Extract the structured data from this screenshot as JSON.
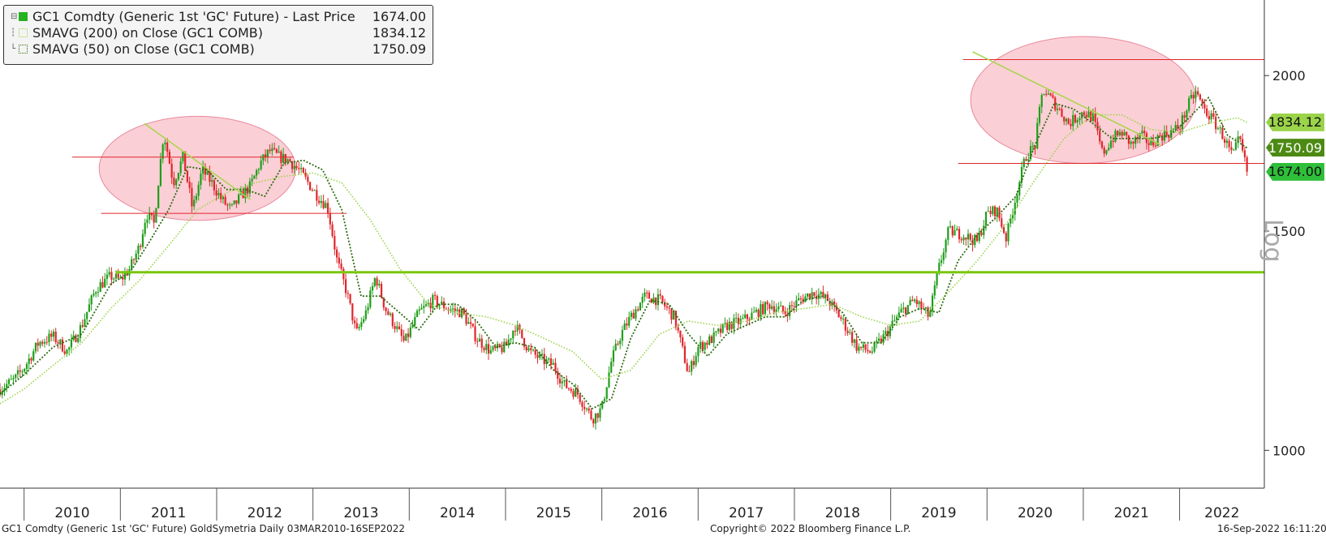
{
  "legend": {
    "price_label": "GC1 Comdty (Generic 1st 'GC' Future) - Last Price",
    "price_value": "1674.00",
    "ma200_label": "SMAVG (200)  on Close (GC1 COMB)",
    "ma200_value": "1834.12",
    "ma50_label": "SMAVG (50)  on Close (GC1 COMB)",
    "ma50_value": "1750.09"
  },
  "axis_label": "Log",
  "footer": {
    "left": "GC1 Comdty (Generic 1st 'GC' Future) GoldSymetria  Daily 03MAR2010-16SEP2022",
    "center": "Copyright© 2022 Bloomberg Finance L.P.",
    "right": "16-Sep-2022 16:11:20"
  },
  "colors": {
    "up_candle": "#1f9e1a",
    "down_candle": "#e0262b",
    "ma200": "#9bd44a",
    "ma50": "#2e6b10",
    "support": "#7ac70c",
    "resistance": "#e0262b",
    "ellipse": "#f7a8b5"
  },
  "chart_data": {
    "type": "line",
    "title": "",
    "xlabel": "",
    "ylabel": "",
    "y_scale": "log",
    "ylim": [
      1000,
      2300
    ],
    "xlim": [
      2009.75,
      2022.88
    ],
    "yticks": [
      1000,
      1500,
      2000
    ],
    "ytick_labels": [
      "1000",
      "1500",
      "2000"
    ],
    "year_labels": [
      "2010",
      "2011",
      "2012",
      "2013",
      "2014",
      "2015",
      "2016",
      "2017",
      "2018",
      "2019",
      "2020",
      "2021",
      "2022"
    ],
    "series": [
      {
        "name": "GC1 Comdty (Generic 1st 'GC' Future) - Last Price",
        "x": [
          2009.75,
          2009.9,
          2010.0,
          2010.15,
          2010.3,
          2010.45,
          2010.6,
          2010.75,
          2010.9,
          2011.0,
          2011.1,
          2011.2,
          2011.27,
          2011.35,
          2011.45,
          2011.55,
          2011.65,
          2011.75,
          2011.85,
          2011.95,
          2012.05,
          2012.15,
          2012.25,
          2012.35,
          2012.45,
          2012.55,
          2012.65,
          2012.75,
          2012.85,
          2012.95,
          2013.05,
          2013.15,
          2013.25,
          2013.35,
          2013.45,
          2013.55,
          2013.65,
          2013.75,
          2013.85,
          2013.95,
          2014.1,
          2014.25,
          2014.4,
          2014.55,
          2014.7,
          2014.85,
          2015.0,
          2015.1,
          2015.25,
          2015.4,
          2015.5,
          2015.6,
          2015.75,
          2015.9,
          2016.0,
          2016.1,
          2016.2,
          2016.3,
          2016.45,
          2016.6,
          2016.75,
          2016.9,
          2017.0,
          2017.15,
          2017.3,
          2017.45,
          2017.6,
          2017.75,
          2017.9,
          2018.05,
          2018.2,
          2018.35,
          2018.5,
          2018.65,
          2018.8,
          2018.95,
          2019.1,
          2019.25,
          2019.4,
          2019.5,
          2019.6,
          2019.75,
          2019.9,
          2020.0,
          2020.1,
          2020.2,
          2020.3,
          2020.4,
          2020.5,
          2020.58,
          2020.7,
          2020.85,
          2021.0,
          2021.1,
          2021.2,
          2021.3,
          2021.4,
          2021.5,
          2021.6,
          2021.7,
          2021.8,
          2021.9,
          2022.0,
          2022.1,
          2022.17,
          2022.25,
          2022.35,
          2022.45,
          2022.55,
          2022.62,
          2022.7
        ],
        "y": [
          1120,
          1140,
          1165,
          1220,
          1235,
          1200,
          1260,
          1350,
          1380,
          1370,
          1400,
          1460,
          1550,
          1520,
          1800,
          1640,
          1720,
          1560,
          1680,
          1640,
          1590,
          1560,
          1600,
          1630,
          1700,
          1740,
          1720,
          1710,
          1680,
          1640,
          1600,
          1570,
          1420,
          1340,
          1240,
          1290,
          1380,
          1300,
          1260,
          1220,
          1290,
          1320,
          1300,
          1290,
          1230,
          1200,
          1210,
          1260,
          1200,
          1180,
          1170,
          1130,
          1110,
          1060,
          1080,
          1180,
          1240,
          1280,
          1330,
          1320,
          1280,
          1150,
          1210,
          1230,
          1260,
          1270,
          1290,
          1310,
          1290,
          1320,
          1340,
          1320,
          1270,
          1210,
          1200,
          1240,
          1290,
          1320,
          1280,
          1400,
          1500,
          1490,
          1470,
          1550,
          1560,
          1480,
          1600,
          1720,
          1760,
          1950,
          1900,
          1830,
          1870,
          1850,
          1730,
          1780,
          1800,
          1760,
          1790,
          1760,
          1790,
          1800,
          1820,
          1900,
          1940,
          1880,
          1840,
          1790,
          1720,
          1780,
          1674
        ]
      },
      {
        "name": "SMAVG (200)  on Close (GC1 COMB)",
        "x": [
          2009.75,
          2010.0,
          2010.3,
          2010.6,
          2010.9,
          2011.2,
          2011.5,
          2011.8,
          2012.1,
          2012.4,
          2012.7,
          2013.0,
          2013.3,
          2013.6,
          2013.9,
          2014.2,
          2014.5,
          2014.8,
          2015.1,
          2015.4,
          2015.7,
          2016.0,
          2016.3,
          2016.6,
          2016.9,
          2017.2,
          2017.5,
          2017.8,
          2018.1,
          2018.4,
          2018.7,
          2019.0,
          2019.3,
          2019.6,
          2019.9,
          2020.2,
          2020.5,
          2020.8,
          2021.1,
          2021.4,
          2021.7,
          2022.0,
          2022.3,
          2022.6,
          2022.7
        ],
        "y": [
          1090,
          1120,
          1170,
          1220,
          1300,
          1370,
          1460,
          1560,
          1610,
          1640,
          1660,
          1670,
          1640,
          1530,
          1400,
          1310,
          1290,
          1280,
          1260,
          1230,
          1200,
          1140,
          1160,
          1240,
          1270,
          1260,
          1270,
          1290,
          1300,
          1310,
          1280,
          1260,
          1270,
          1340,
          1420,
          1520,
          1650,
          1780,
          1860,
          1860,
          1810,
          1800,
          1830,
          1850,
          1834
        ]
      },
      {
        "name": "SMAVG (50)  on Close (GC1 COMB)",
        "x": [
          2009.75,
          2010.0,
          2010.3,
          2010.6,
          2010.9,
          2011.1,
          2011.3,
          2011.5,
          2011.7,
          2011.9,
          2012.1,
          2012.3,
          2012.5,
          2012.7,
          2012.9,
          2013.1,
          2013.3,
          2013.5,
          2013.7,
          2013.9,
          2014.1,
          2014.3,
          2014.5,
          2014.7,
          2014.9,
          2015.1,
          2015.3,
          2015.5,
          2015.7,
          2015.9,
          2016.1,
          2016.3,
          2016.5,
          2016.7,
          2016.9,
          2017.1,
          2017.3,
          2017.5,
          2017.7,
          2017.9,
          2018.1,
          2018.3,
          2018.5,
          2018.7,
          2018.9,
          2019.1,
          2019.3,
          2019.5,
          2019.7,
          2019.9,
          2020.1,
          2020.3,
          2020.5,
          2020.7,
          2020.9,
          2021.1,
          2021.3,
          2021.5,
          2021.7,
          2021.9,
          2022.1,
          2022.3,
          2022.5,
          2022.7
        ],
        "y": [
          1110,
          1150,
          1210,
          1240,
          1360,
          1390,
          1470,
          1560,
          1690,
          1680,
          1620,
          1620,
          1600,
          1700,
          1710,
          1680,
          1560,
          1330,
          1330,
          1290,
          1250,
          1310,
          1310,
          1270,
          1210,
          1220,
          1210,
          1160,
          1130,
          1080,
          1100,
          1230,
          1320,
          1310,
          1240,
          1190,
          1240,
          1260,
          1280,
          1280,
          1320,
          1330,
          1290,
          1220,
          1220,
          1280,
          1300,
          1290,
          1420,
          1490,
          1540,
          1600,
          1760,
          1900,
          1880,
          1830,
          1780,
          1780,
          1780,
          1790,
          1850,
          1920,
          1790,
          1750
        ]
      }
    ],
    "annotations": [
      {
        "type": "support_line",
        "y": 1390,
        "x_start": 2010.95,
        "x_end": 2022.88
      },
      {
        "type": "resistance_line",
        "y": 1720,
        "x_start": 2010.5,
        "x_end": 2012.8
      },
      {
        "type": "resistance_line",
        "y": 1550,
        "x_start": 2010.8,
        "x_end": 2013.35
      },
      {
        "type": "resistance_line",
        "y": 2060,
        "x_start": 2019.75,
        "x_end": 2022.88
      },
      {
        "type": "resistance_line",
        "y": 1700,
        "x_start": 2019.7,
        "x_end": 2022.88
      },
      {
        "type": "trend_line",
        "x_start": 2011.25,
        "y_start": 1830,
        "x_end": 2012.35,
        "y_end": 1590
      },
      {
        "type": "trend_line",
        "x_start": 2019.85,
        "y_start": 2090,
        "x_end": 2021.8,
        "y_end": 1760
      },
      {
        "type": "ellipse",
        "x_center": 2011.8,
        "y_center": 1690,
        "x_radius": 1.02,
        "y_low": 1530,
        "y_high": 1855
      },
      {
        "type": "ellipse",
        "x_center": 2021.0,
        "y_center": 1920,
        "x_radius": 1.17,
        "y_low": 1700,
        "y_high": 2150
      }
    ],
    "last_values": {
      "price": 1674.0,
      "ma200": 1834.12,
      "ma50": 1750.09
    },
    "grid": false,
    "legend_position": "top-left"
  }
}
